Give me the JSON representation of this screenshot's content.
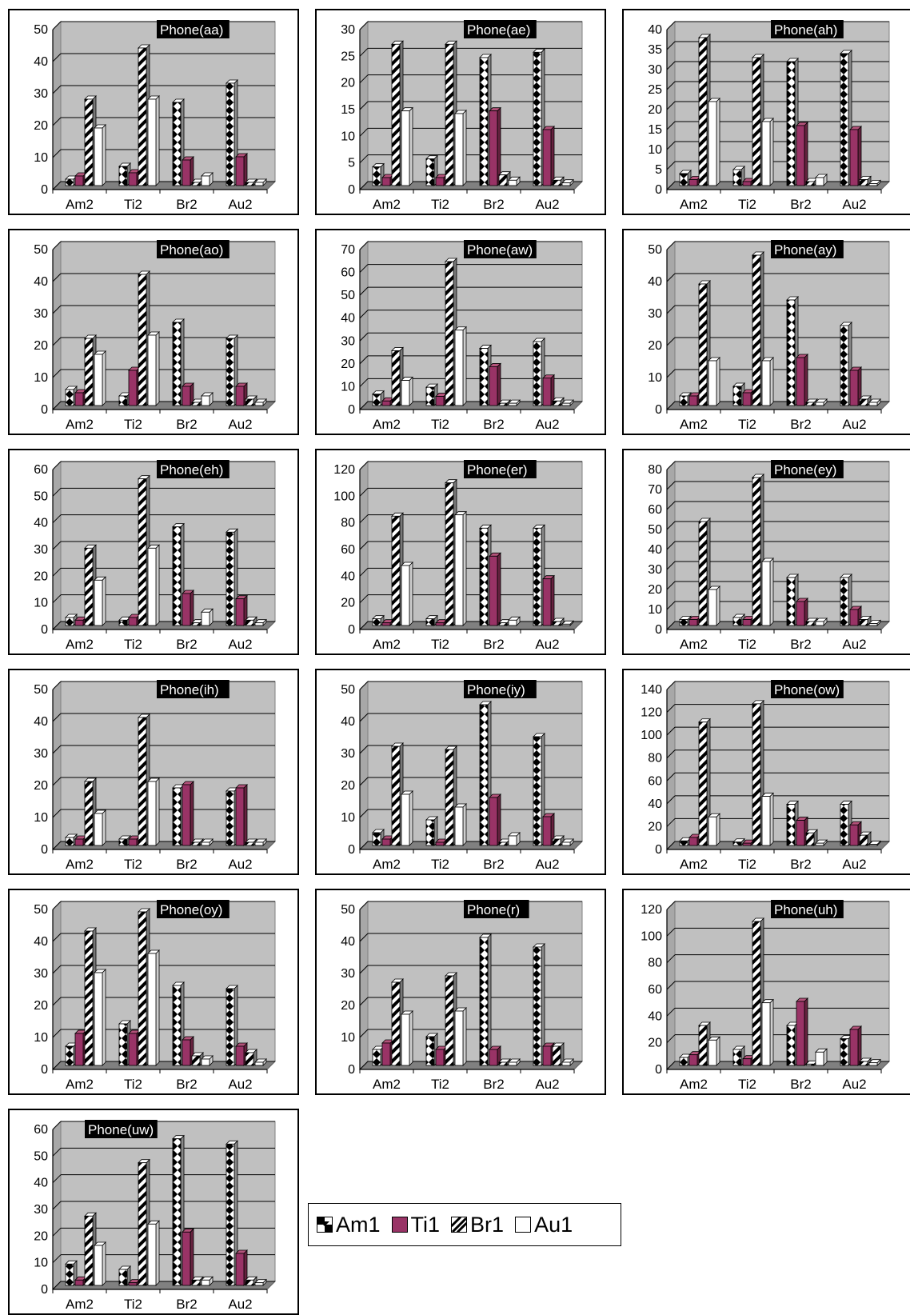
{
  "chart_data": [
    {
      "type": "bar",
      "title": "Phone(aa)",
      "categories": [
        "Am2",
        "Ti2",
        "Br2",
        "Au2"
      ],
      "ylim": [
        0,
        50
      ],
      "yticks": [
        0,
        10,
        20,
        30,
        40,
        50
      ],
      "series": [
        {
          "name": "Am1",
          "values": [
            2,
            6,
            26,
            32
          ]
        },
        {
          "name": "Ti1",
          "values": [
            3,
            4,
            8,
            9
          ]
        },
        {
          "name": "Br1",
          "values": [
            27,
            43,
            1,
            1
          ]
        },
        {
          "name": "Au1",
          "values": [
            18,
            27,
            3,
            1
          ]
        }
      ]
    },
    {
      "type": "bar",
      "title": "Phone(ae)",
      "categories": [
        "Am2",
        "Ti2",
        "Br2",
        "Au2"
      ],
      "ylim": [
        0,
        30
      ],
      "yticks": [
        0,
        5,
        10,
        15,
        20,
        25,
        30
      ],
      "series": [
        {
          "name": "Am1",
          "values": [
            3.5,
            5,
            24,
            25
          ]
        },
        {
          "name": "Ti1",
          "values": [
            1.5,
            1.5,
            14,
            10.5
          ]
        },
        {
          "name": "Br1",
          "values": [
            26.5,
            26.5,
            2,
            1
          ]
        },
        {
          "name": "Au1",
          "values": [
            14,
            13.5,
            1,
            0.5
          ]
        }
      ]
    },
    {
      "type": "bar",
      "title": "Phone(ah)",
      "categories": [
        "Am2",
        "Ti2",
        "Br2",
        "Au2"
      ],
      "ylim": [
        0,
        40
      ],
      "yticks": [
        0,
        5,
        10,
        15,
        20,
        25,
        30,
        35,
        40
      ],
      "series": [
        {
          "name": "Am1",
          "values": [
            3,
            4,
            31,
            33
          ]
        },
        {
          "name": "Ti1",
          "values": [
            1.5,
            1,
            15,
            14
          ]
        },
        {
          "name": "Br1",
          "values": [
            37,
            32,
            1,
            1.5
          ]
        },
        {
          "name": "Au1",
          "values": [
            21,
            16,
            2,
            0.5
          ]
        }
      ]
    },
    {
      "type": "bar",
      "title": "Phone(ao)",
      "categories": [
        "Am2",
        "Ti2",
        "Br2",
        "Au2"
      ],
      "ylim": [
        0,
        50
      ],
      "yticks": [
        0,
        10,
        20,
        30,
        40,
        50
      ],
      "series": [
        {
          "name": "Am1",
          "values": [
            5,
            3,
            26,
            21
          ]
        },
        {
          "name": "Ti1",
          "values": [
            4,
            11,
            6,
            6
          ]
        },
        {
          "name": "Br1",
          "values": [
            21,
            41,
            1,
            2
          ]
        },
        {
          "name": "Au1",
          "values": [
            16,
            22,
            3,
            1
          ]
        }
      ]
    },
    {
      "type": "bar",
      "title": "Phone(aw)",
      "categories": [
        "Am2",
        "Ti2",
        "Br2",
        "Au2"
      ],
      "ylim": [
        0,
        70
      ],
      "yticks": [
        0,
        10,
        20,
        30,
        40,
        50,
        60,
        70
      ],
      "series": [
        {
          "name": "Am1",
          "values": [
            5,
            8,
            25,
            28
          ]
        },
        {
          "name": "Ti1",
          "values": [
            2,
            4,
            17,
            12
          ]
        },
        {
          "name": "Br1",
          "values": [
            24,
            63,
            1,
            2
          ]
        },
        {
          "name": "Au1",
          "values": [
            11,
            33,
            1,
            1
          ]
        }
      ]
    },
    {
      "type": "bar",
      "title": "Phone(ay)",
      "categories": [
        "Am2",
        "Ti2",
        "Br2",
        "Au2"
      ],
      "ylim": [
        0,
        50
      ],
      "yticks": [
        0,
        10,
        20,
        30,
        40,
        50
      ],
      "series": [
        {
          "name": "Am1",
          "values": [
            3,
            6,
            33,
            25
          ]
        },
        {
          "name": "Ti1",
          "values": [
            3,
            4,
            15,
            11
          ]
        },
        {
          "name": "Br1",
          "values": [
            38,
            47,
            1,
            2
          ]
        },
        {
          "name": "Au1",
          "values": [
            14,
            14,
            1,
            1
          ]
        }
      ]
    },
    {
      "type": "bar",
      "title": "Phone(eh)",
      "categories": [
        "Am2",
        "Ti2",
        "Br2",
        "Au2"
      ],
      "ylim": [
        0,
        60
      ],
      "yticks": [
        0,
        10,
        20,
        30,
        40,
        50,
        60
      ],
      "series": [
        {
          "name": "Am1",
          "values": [
            3,
            2,
            37,
            35
          ]
        },
        {
          "name": "Ti1",
          "values": [
            2,
            3,
            12,
            10
          ]
        },
        {
          "name": "Br1",
          "values": [
            29,
            55,
            1,
            2
          ]
        },
        {
          "name": "Au1",
          "values": [
            17,
            29,
            5,
            1
          ]
        }
      ]
    },
    {
      "type": "bar",
      "title": "Phone(er)",
      "categories": [
        "Am2",
        "Ti2",
        "Br2",
        "Au2"
      ],
      "ylim": [
        0,
        120
      ],
      "yticks": [
        0,
        20,
        40,
        60,
        80,
        100,
        120
      ],
      "series": [
        {
          "name": "Am1",
          "values": [
            5,
            5,
            73,
            73
          ]
        },
        {
          "name": "Ti1",
          "values": [
            2,
            2,
            52,
            35
          ]
        },
        {
          "name": "Br1",
          "values": [
            82,
            107,
            2,
            3
          ]
        },
        {
          "name": "Au1",
          "values": [
            45,
            83,
            4,
            1
          ]
        }
      ]
    },
    {
      "type": "bar",
      "title": "Phone(ey)",
      "categories": [
        "Am2",
        "Ti2",
        "Br2",
        "Au2"
      ],
      "ylim": [
        0,
        80
      ],
      "yticks": [
        0,
        10,
        20,
        30,
        40,
        50,
        60,
        70,
        80
      ],
      "series": [
        {
          "name": "Am1",
          "values": [
            3,
            4,
            24,
            24
          ]
        },
        {
          "name": "Ti1",
          "values": [
            3,
            3,
            12,
            8
          ]
        },
        {
          "name": "Br1",
          "values": [
            52,
            74,
            2,
            3
          ]
        },
        {
          "name": "Au1",
          "values": [
            18,
            32,
            2,
            1
          ]
        }
      ]
    },
    {
      "type": "bar",
      "title": "Phone(ih)",
      "categories": [
        "Am2",
        "Ti2",
        "Br2",
        "Au2"
      ],
      "ylim": [
        0,
        50
      ],
      "yticks": [
        0,
        10,
        20,
        30,
        40,
        50
      ],
      "series": [
        {
          "name": "Am1",
          "values": [
            2.5,
            2,
            18,
            17
          ]
        },
        {
          "name": "Ti1",
          "values": [
            2,
            2,
            19,
            18
          ]
        },
        {
          "name": "Br1",
          "values": [
            20,
            40,
            1,
            1
          ]
        },
        {
          "name": "Au1",
          "values": [
            10,
            20,
            1,
            1
          ]
        }
      ]
    },
    {
      "type": "bar",
      "title": "Phone(iy)",
      "categories": [
        "Am2",
        "Ti2",
        "Br2",
        "Au2"
      ],
      "ylim": [
        0,
        50
      ],
      "yticks": [
        0,
        10,
        20,
        30,
        40,
        50
      ],
      "series": [
        {
          "name": "Am1",
          "values": [
            4,
            8,
            44,
            34
          ]
        },
        {
          "name": "Ti1",
          "values": [
            2,
            1,
            15,
            9
          ]
        },
        {
          "name": "Br1",
          "values": [
            31,
            30,
            1,
            2
          ]
        },
        {
          "name": "Au1",
          "values": [
            16,
            12,
            3,
            1
          ]
        }
      ]
    },
    {
      "type": "bar",
      "title": "Phone(ow)",
      "categories": [
        "Am2",
        "Ti2",
        "Br2",
        "Au2"
      ],
      "ylim": [
        0,
        140
      ],
      "yticks": [
        0,
        20,
        40,
        60,
        80,
        100,
        120,
        140
      ],
      "series": [
        {
          "name": "Am1",
          "values": [
            4,
            3,
            36,
            36
          ]
        },
        {
          "name": "Ti1",
          "values": [
            7,
            2,
            22,
            18
          ]
        },
        {
          "name": "Br1",
          "values": [
            108,
            124,
            11,
            9
          ]
        },
        {
          "name": "Au1",
          "values": [
            25,
            43,
            2,
            1
          ]
        }
      ]
    },
    {
      "type": "bar",
      "title": "Phone(oy)",
      "categories": [
        "Am2",
        "Ti2",
        "Br2",
        "Au2"
      ],
      "ylim": [
        0,
        50
      ],
      "yticks": [
        0,
        10,
        20,
        30,
        40,
        50
      ],
      "series": [
        {
          "name": "Am1",
          "values": [
            6,
            13,
            25,
            24
          ]
        },
        {
          "name": "Ti1",
          "values": [
            10,
            10,
            8,
            6
          ]
        },
        {
          "name": "Br1",
          "values": [
            42,
            48,
            3,
            4
          ]
        },
        {
          "name": "Au1",
          "values": [
            29,
            35,
            2,
            1
          ]
        }
      ]
    },
    {
      "type": "bar",
      "title": "Phone(r)",
      "categories": [
        "Am2",
        "Ti2",
        "Br2",
        "Au2"
      ],
      "ylim": [
        0,
        50
      ],
      "yticks": [
        0,
        10,
        20,
        30,
        40,
        50
      ],
      "series": [
        {
          "name": "Am1",
          "values": [
            5,
            9,
            40,
            37
          ]
        },
        {
          "name": "Ti1",
          "values": [
            7,
            5,
            5,
            6
          ]
        },
        {
          "name": "Br1",
          "values": [
            26,
            28,
            1,
            6
          ]
        },
        {
          "name": "Au1",
          "values": [
            16,
            17,
            1,
            1
          ]
        }
      ]
    },
    {
      "type": "bar",
      "title": "Phone(uh)",
      "categories": [
        "Am2",
        "Ti2",
        "Br2",
        "Au2"
      ],
      "ylim": [
        0,
        120
      ],
      "yticks": [
        0,
        20,
        40,
        60,
        80,
        100,
        120
      ],
      "series": [
        {
          "name": "Am1",
          "values": [
            6,
            12,
            30,
            20
          ]
        },
        {
          "name": "Ti1",
          "values": [
            8,
            5,
            48,
            27
          ]
        },
        {
          "name": "Br1",
          "values": [
            30,
            108,
            1,
            3
          ]
        },
        {
          "name": "Au1",
          "values": [
            19,
            47,
            10,
            2
          ]
        }
      ]
    },
    {
      "type": "bar",
      "title": "Phone(uw)",
      "categories": [
        "Am2",
        "Ti2",
        "Br2",
        "Au2"
      ],
      "ylim": [
        0,
        60
      ],
      "yticks": [
        0,
        10,
        20,
        30,
        40,
        50,
        60
      ],
      "series": [
        {
          "name": "Am1",
          "values": [
            8,
            6,
            55,
            53
          ]
        },
        {
          "name": "Ti1",
          "values": [
            2,
            1,
            20,
            12
          ]
        },
        {
          "name": "Br1",
          "values": [
            26,
            46,
            2,
            2
          ]
        },
        {
          "name": "Au1",
          "values": [
            15,
            23,
            2,
            1
          ]
        }
      ]
    }
  ],
  "legend": {
    "items": [
      {
        "label": "Am1",
        "pattern": "checker"
      },
      {
        "label": "Ti1",
        "pattern": "solid"
      },
      {
        "label": "Br1",
        "pattern": "diagonal"
      },
      {
        "label": "Au1",
        "pattern": "white"
      }
    ]
  },
  "colors": {
    "plot_bg": "#c0c0c0",
    "ti1": "#993366",
    "axis": "#000000",
    "grid": "#000000"
  }
}
